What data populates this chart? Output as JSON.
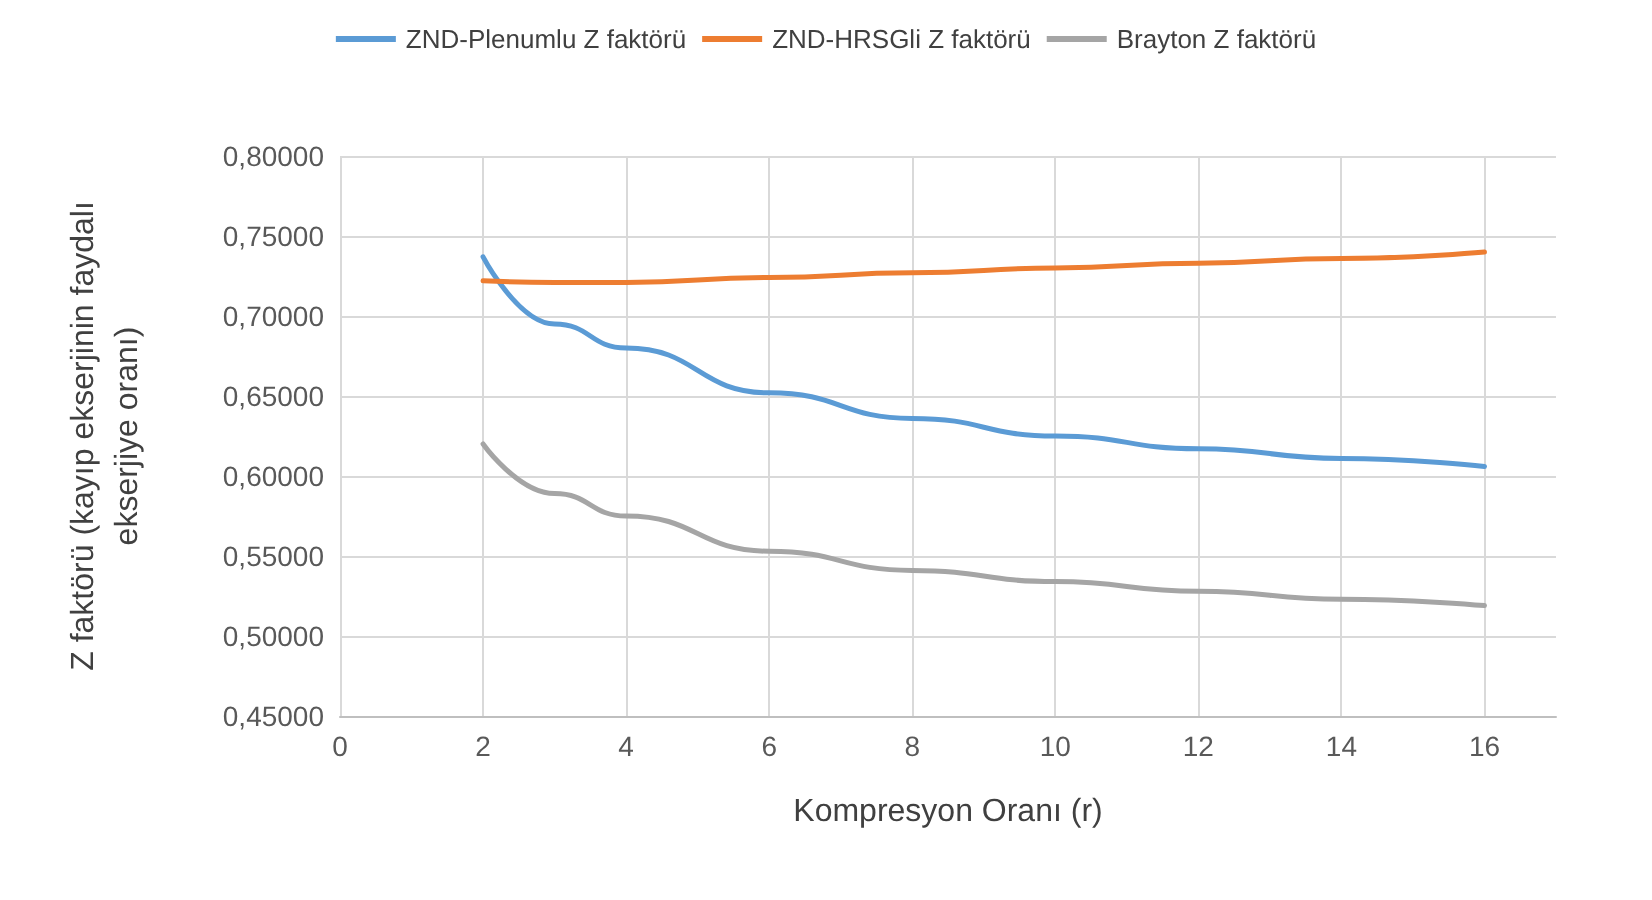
{
  "chart_data": {
    "type": "line",
    "xlabel": "Kompresyon Oranı (r)",
    "ylabel": "Z faktörü (kayıp ekserjinin faydalı\nekserjiye oranı)",
    "x": [
      2,
      3,
      4,
      6,
      8,
      10,
      12,
      14,
      16
    ],
    "series": [
      {
        "name": "ZND-Plenumlu Z faktörü",
        "color": "#5b9bd5",
        "values": [
          0.737,
          0.695,
          0.68,
          0.652,
          0.636,
          0.625,
          0.617,
          0.611,
          0.606
        ]
      },
      {
        "name": "ZND-HRSGli Z faktörü",
        "color": "#ed7d31",
        "values": [
          0.722,
          0.721,
          0.721,
          0.724,
          0.727,
          0.73,
          0.733,
          0.736,
          0.74
        ]
      },
      {
        "name": "Brayton Z faktörü",
        "color": "#a5a5a5",
        "values": [
          0.62,
          0.589,
          0.575,
          0.553,
          0.541,
          0.534,
          0.528,
          0.523,
          0.519
        ]
      }
    ],
    "xlim": [
      0,
      17
    ],
    "xticks": [
      0,
      2,
      4,
      6,
      8,
      10,
      12,
      14,
      16
    ],
    "ylim": [
      0.45,
      0.8
    ],
    "yticks": [
      {
        "value": 0.45,
        "label": "0,45000"
      },
      {
        "value": 0.5,
        "label": "0,50000"
      },
      {
        "value": 0.55,
        "label": "0,55000"
      },
      {
        "value": 0.6,
        "label": "0,60000"
      },
      {
        "value": 0.65,
        "label": "0,65000"
      },
      {
        "value": 0.7,
        "label": "0,70000"
      },
      {
        "value": 0.75,
        "label": "0,75000"
      },
      {
        "value": 0.8,
        "label": "0,80000"
      }
    ],
    "grid": true,
    "legend": "top",
    "marker": "none",
    "line_style": "solid"
  }
}
